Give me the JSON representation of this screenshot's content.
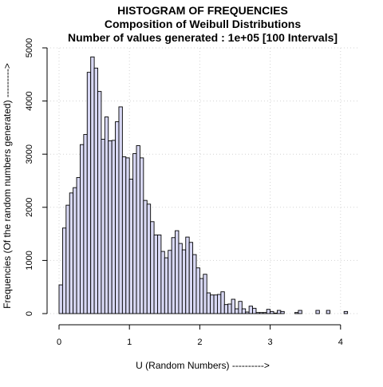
{
  "chart_data": {
    "type": "bar",
    "title_lines": [
      "HISTOGRAM OF FREQUENCIES",
      "Composition of Weibull Distributions",
      "Number of values generated :  1e+05 [100 Intervals]"
    ],
    "xlabel": "U (Random Numbers) ---------->",
    "ylabel": "Frequencies (Of the random numbers generated) --------->",
    "xlim": [
      0,
      4.1
    ],
    "ylim": [
      0,
      5000
    ],
    "x_ticks": [
      0,
      1,
      2,
      3,
      4
    ],
    "y_ticks": [
      0,
      1000,
      2000,
      3000,
      4000,
      5000
    ],
    "grid": true,
    "bar_fill": "#d8d8f4",
    "bar_width": 0.05,
    "series": [
      {
        "x": [
          0.025,
          0.075,
          0.125,
          0.175,
          0.225,
          0.275,
          0.325,
          0.375,
          0.425,
          0.475,
          0.525,
          0.575,
          0.625,
          0.675,
          0.725,
          0.775,
          0.825,
          0.875,
          0.925,
          0.975,
          1.025,
          1.075,
          1.125,
          1.175,
          1.225,
          1.275,
          1.325,
          1.375,
          1.425,
          1.475,
          1.525,
          1.575,
          1.625,
          1.675,
          1.725,
          1.775,
          1.825,
          1.875,
          1.925,
          1.975,
          2.025,
          2.075,
          2.125,
          2.175,
          2.225,
          2.275,
          2.325,
          2.375,
          2.425,
          2.475,
          2.525,
          2.575,
          2.625,
          2.675,
          2.725,
          2.775,
          2.825,
          2.875,
          2.925,
          2.975,
          3.025,
          3.075,
          3.125,
          3.175,
          3.225,
          3.275,
          3.325,
          3.375,
          3.425,
          3.475,
          3.525,
          3.575,
          3.625,
          3.675,
          3.725,
          3.775,
          3.825,
          3.875,
          3.925,
          3.975,
          4.025,
          4.075
        ],
        "values": [
          540,
          1610,
          2040,
          2270,
          2370,
          2560,
          3180,
          3370,
          4540,
          4830,
          4620,
          4180,
          3280,
          3700,
          3250,
          3260,
          3610,
          3890,
          2950,
          2930,
          2530,
          3010,
          3160,
          2930,
          2130,
          2060,
          1730,
          1480,
          1480,
          1170,
          1050,
          1190,
          1430,
          1560,
          1320,
          1200,
          1440,
          1340,
          1110,
          860,
          660,
          740,
          390,
          350,
          350,
          360,
          410,
          170,
          180,
          270,
          90,
          230,
          90,
          30,
          140,
          100,
          20,
          20,
          20,
          80,
          40,
          10,
          60,
          40,
          0,
          0,
          0,
          20,
          60,
          0,
          0,
          0,
          0,
          60,
          0,
          0,
          60,
          0,
          0,
          0,
          0,
          40
        ]
      }
    ]
  }
}
